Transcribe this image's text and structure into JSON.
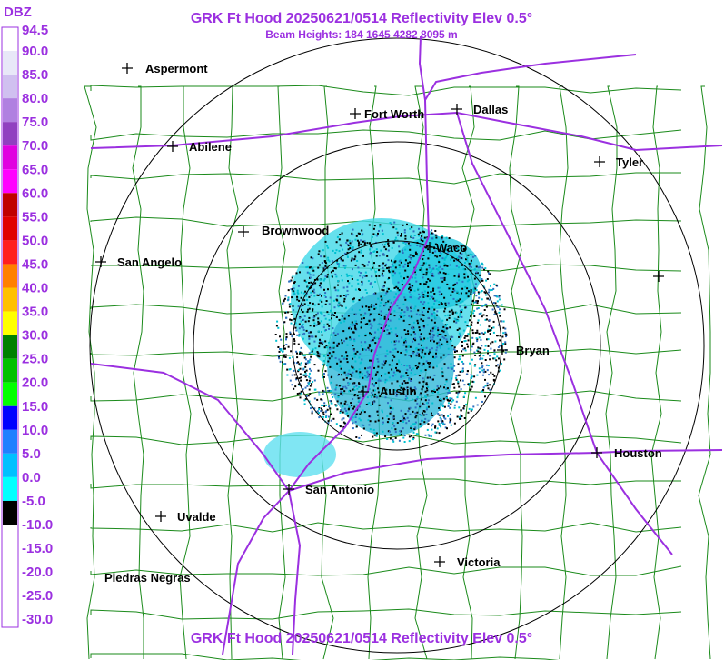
{
  "header": {
    "title": "GRK Ft Hood 20250621/0514 Reflectivity Elev 0.5°",
    "subtitle": "Beam Heights: 184 1645 4282 8095 m"
  },
  "legend": {
    "unit": "DBZ",
    "labels": [
      "94.5",
      "90.0",
      "85.0",
      "80.0",
      "75.0",
      "70.0",
      "65.0",
      "60.0",
      "55.0",
      "50.0",
      "45.0",
      "40.0",
      "35.0",
      "30.0",
      "25.0",
      "20.0",
      "15.0",
      "10.0",
      "5.0",
      "0.0",
      "-5.0",
      "-10.0",
      "-15.0",
      "-20.0",
      "-25.0",
      "-30.0"
    ],
    "colors": [
      "#ffffff",
      "#e8e8f8",
      "#d0c0f0",
      "#b080e0",
      "#9040c0",
      "#e000e0",
      "#ff00ff",
      "#c00000",
      "#e00000",
      "#ff2020",
      "#ff8000",
      "#ffc000",
      "#ffff00",
      "#008000",
      "#00c000",
      "#00ff00",
      "#0000ff",
      "#2080ff",
      "#00c0ff",
      "#00ffff",
      "#000000",
      "#ffffff",
      "#ffffff",
      "#ffffff",
      "#ffffff",
      "#ffffff"
    ]
  },
  "cities": [
    {
      "label": "Aspermont"
    },
    {
      "label": "Fort Worth"
    },
    {
      "label": "Dallas"
    },
    {
      "label": "Abilene"
    },
    {
      "label": "Tyler"
    },
    {
      "label": "Brownwood"
    },
    {
      "label": "Waco"
    },
    {
      "label": "San Angelo"
    },
    {
      "label": "Bryan"
    },
    {
      "label": "Austin"
    },
    {
      "label": "Houston"
    },
    {
      "label": "San Antonio"
    },
    {
      "label": "Uvalde"
    },
    {
      "label": "Victoria"
    },
    {
      "label": "Piedras Negras"
    }
  ],
  "footer": {
    "title": "GRK Ft Hood 20250621/0514 Reflectivity Elev 0.5°"
  }
}
